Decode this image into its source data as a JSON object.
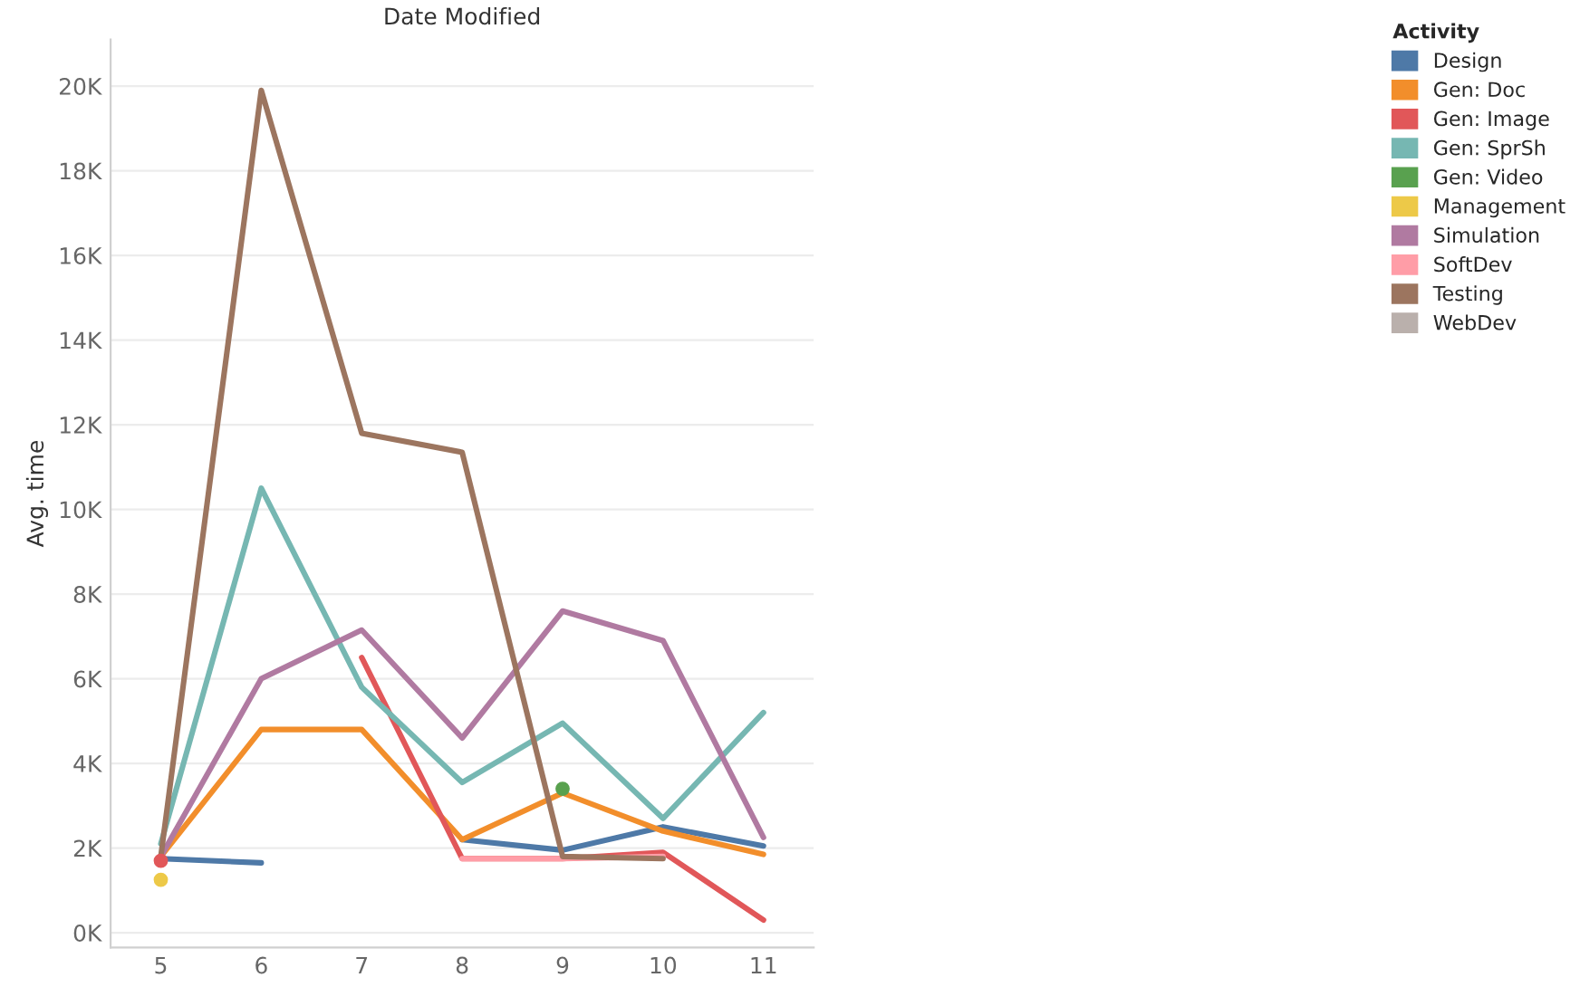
{
  "chart_data": {
    "type": "line",
    "title": "Date Modified",
    "ylabel": "Avg. time",
    "legend_title": "Activity",
    "legend": "right",
    "grid": "y",
    "line_style": "solid",
    "categories": [
      "5",
      "6",
      "7",
      "8",
      "9",
      "10",
      "11"
    ],
    "ylim": [
      -350,
      21100
    ],
    "yticks": [
      {
        "value": 0,
        "label": "0K"
      },
      {
        "value": 2000,
        "label": "2K"
      },
      {
        "value": 4000,
        "label": "4K"
      },
      {
        "value": 6000,
        "label": "6K"
      },
      {
        "value": 8000,
        "label": "8K"
      },
      {
        "value": 10000,
        "label": "10K"
      },
      {
        "value": 12000,
        "label": "12K"
      },
      {
        "value": 14000,
        "label": "14K"
      },
      {
        "value": 16000,
        "label": "16K"
      },
      {
        "value": 18000,
        "label": "18K"
      },
      {
        "value": 20000,
        "label": "20K"
      }
    ],
    "series": [
      {
        "name": "Design",
        "color": "#4e79a7",
        "values": [
          1750,
          1650,
          null,
          2200,
          1950,
          2500,
          2050
        ]
      },
      {
        "name": "Gen: Doc",
        "color": "#f28e2b",
        "values": [
          1800,
          4800,
          4800,
          2200,
          3300,
          2400,
          1850
        ]
      },
      {
        "name": "Gen: Image",
        "color": "#e15759",
        "values": [
          1700,
          null,
          6500,
          1750,
          1750,
          1900,
          300
        ]
      },
      {
        "name": "Gen: SprSh",
        "color": "#76b7b2",
        "values": [
          2100,
          10500,
          5800,
          3550,
          4950,
          2700,
          5200
        ]
      },
      {
        "name": "Gen: Video",
        "color": "#59a14f",
        "type": "scatter",
        "marker": "circle",
        "values": [
          null,
          null,
          null,
          null,
          3400,
          null,
          null
        ]
      },
      {
        "name": "Management",
        "color": "#edc948",
        "type": "scatter",
        "marker": "circle",
        "values": [
          1250,
          null,
          null,
          null,
          null,
          null,
          null
        ]
      },
      {
        "name": "Simulation",
        "color": "#b07aa1",
        "values": [
          1800,
          6000,
          7150,
          4600,
          7600,
          6900,
          2250
        ]
      },
      {
        "name": "SoftDev",
        "color": "#ff9da7",
        "values": [
          null,
          null,
          null,
          1750,
          1750,
          1800,
          null
        ]
      },
      {
        "name": "Testing",
        "color": "#9c755f",
        "values": [
          1800,
          19900,
          11800,
          11350,
          1800,
          1750,
          null
        ]
      },
      {
        "name": "WebDev",
        "color": "#bab0ac",
        "values": [
          null,
          null,
          null,
          null,
          null,
          null,
          null
        ]
      }
    ]
  }
}
